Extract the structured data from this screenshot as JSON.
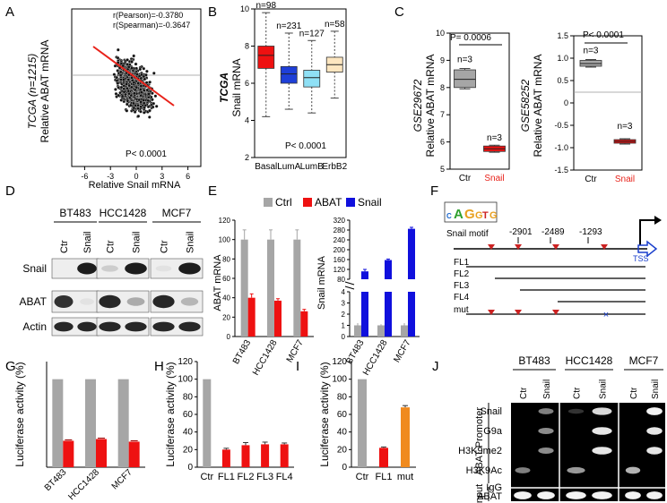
{
  "panels": {
    "A": {
      "letter": "A"
    },
    "B": {
      "letter": "B"
    },
    "C": {
      "letter": "C"
    },
    "D": {
      "letter": "D"
    },
    "E": {
      "letter": "E"
    },
    "F": {
      "letter": "F"
    },
    "G": {
      "letter": "G"
    },
    "H": {
      "letter": "H"
    },
    "I": {
      "letter": "I"
    },
    "J": {
      "letter": "J"
    }
  },
  "colors": {
    "gray": "#a6a6a6",
    "red": "#ee1111",
    "blue": "#1010dd",
    "orange": "#f08a1e",
    "black": "#000000"
  },
  "chart_data": [
    {
      "id": "A",
      "type": "scatter",
      "ylabel_italic": "TCGA (n=1215)",
      "ylabel": "Relative ABAT mRNA",
      "xlabel": "Relative Snail mRNA",
      "xticks": [
        "-6",
        "-3",
        "0",
        "3",
        "6"
      ],
      "xlim": [
        -7.5,
        7.5
      ],
      "ylim": [
        -3,
        3
      ],
      "annotations": [
        "r(Pearson)=-0.3780",
        "r(Spearman)=-0.3647"
      ],
      "pvalue": "P< 0.0001",
      "n_points": 1215,
      "regression_slope": -0.38
    },
    {
      "id": "B",
      "type": "box",
      "ylabel_italic": "TCGA",
      "ylabel": "Snail mRNA",
      "categories": [
        "Basal",
        "LumA",
        "LumB",
        "ErbB2"
      ],
      "counts": [
        "n=98",
        "n=231",
        "n=127",
        "n=58"
      ],
      "colors": [
        "#ee1111",
        "#1e3fd8",
        "#8fe0f5",
        "#fde6c0"
      ],
      "yticks": [
        "2",
        "4",
        "6",
        "8",
        "10"
      ],
      "ylim": [
        2,
        10
      ],
      "boxes": [
        {
          "min": 4.2,
          "q1": 6.8,
          "median": 7.5,
          "q3": 8.0,
          "max": 9.8
        },
        {
          "min": 4.6,
          "q1": 6.0,
          "median": 6.5,
          "q3": 6.9,
          "max": 8.7
        },
        {
          "min": 4.4,
          "q1": 5.8,
          "median": 6.3,
          "q3": 6.7,
          "max": 8.3
        },
        {
          "min": 5.2,
          "q1": 6.6,
          "median": 7.0,
          "q3": 7.4,
          "max": 8.8
        }
      ],
      "pvalue": "P< 0.0001"
    },
    {
      "id": "C1",
      "type": "box",
      "ylabel_italic": "GSE29672",
      "ylabel": "Relative ABAT mRNA",
      "categories": [
        "Ctr",
        "Snail"
      ],
      "counts": [
        "n=3",
        "n=3"
      ],
      "colors": [
        "#a6a6a6",
        "#ee1111"
      ],
      "yticks": [
        "5",
        "6",
        "7",
        "8",
        "9",
        "10"
      ],
      "ylim": [
        5,
        10
      ],
      "boxes": [
        {
          "min": 7.95,
          "q1": 8.0,
          "median": 8.3,
          "q3": 8.65,
          "max": 8.7
        },
        {
          "min": 5.62,
          "q1": 5.65,
          "median": 5.75,
          "q3": 5.85,
          "max": 5.88
        }
      ],
      "pvalue": "P= 0.0006"
    },
    {
      "id": "C2",
      "type": "box",
      "ylabel_italic": "GSE58252",
      "ylabel": "Relative ABAT mRNA",
      "categories": [
        "Ctr",
        "Snail"
      ],
      "counts": [
        "n=3",
        "n=3"
      ],
      "colors": [
        "#a6a6a6",
        "#ee1111"
      ],
      "yticks": [
        "1.5",
        "1.0",
        "0.5",
        "0",
        "-0.5",
        "-1.0",
        "-1.5"
      ],
      "ylim": [
        -1.5,
        1.5
      ],
      "boxes": [
        {
          "min": 0.8,
          "q1": 0.82,
          "median": 0.88,
          "q3": 0.95,
          "max": 0.97
        },
        {
          "min": -0.92,
          "q1": -0.9,
          "median": -0.86,
          "q3": -0.82,
          "max": -0.8
        }
      ],
      "pvalue": "P< 0.0001"
    },
    {
      "id": "E",
      "type": "bar",
      "legend": [
        "Ctrl",
        "ABAT",
        "Snail"
      ],
      "categories": [
        "BT483",
        "HCC1428",
        "MCF7"
      ],
      "left": {
        "ylabel": "ABAT mRNA",
        "yticks": [
          "0",
          "20",
          "40",
          "60",
          "80",
          "100",
          "120"
        ],
        "ylim": [
          0,
          120
        ],
        "series": [
          {
            "name": "Ctrl",
            "values": [
              100,
              100,
              100
            ],
            "errors": [
              10,
              10,
              10
            ]
          },
          {
            "name": "ABAT",
            "values": [
              40,
              37,
              26
            ],
            "errors": [
              4,
              2,
              2
            ]
          }
        ]
      },
      "right": {
        "ylabel": "Snail mRNA",
        "upper_ticks": [
          "80",
          "120",
          "160",
          "200",
          "240",
          "280",
          "320"
        ],
        "lower_ticks": [
          "0",
          "1",
          "2",
          "3",
          "4"
        ],
        "series": [
          {
            "name": "Ctrl",
            "values": [
              1,
              1,
              1
            ],
            "errors": [
              0.2,
              0.1,
              0.2
            ]
          },
          {
            "name": "Snail",
            "values": [
              112,
              158,
              285
            ],
            "errors": [
              8,
              4,
              6
            ]
          }
        ]
      }
    },
    {
      "id": "G",
      "type": "bar",
      "ylabel": "Luciferase activity (%)",
      "categories": [
        "BT483",
        "HCC1428",
        "MCF7"
      ],
      "yticks": [
        "0",
        "20",
        "40",
        "60",
        "80",
        "100",
        "120"
      ],
      "ylim": [
        0,
        120
      ],
      "series": [
        {
          "name": "Ctrl",
          "values": [
            100,
            100,
            100
          ]
        },
        {
          "name": "Snail",
          "values": [
            30,
            32,
            29
          ],
          "errors": [
            1,
            1,
            1
          ]
        }
      ]
    },
    {
      "id": "H",
      "type": "bar",
      "ylabel": "Luciferase activity (%)",
      "categories": [
        "Ctr",
        "FL1",
        "FL2",
        "FL3",
        "FL4"
      ],
      "yticks": [
        "0",
        "20",
        "40",
        "60",
        "80",
        "100",
        "120"
      ],
      "ylim": [
        0,
        120
      ],
      "values": [
        100,
        20,
        25,
        26,
        26
      ],
      "errors": [
        0,
        1.5,
        3,
        2.5,
        1.5
      ],
      "colors": [
        "#a6a6a6",
        "#ee1111",
        "#ee1111",
        "#ee1111",
        "#ee1111"
      ]
    },
    {
      "id": "I",
      "type": "bar",
      "ylabel": "Luciferase activity (%)",
      "categories": [
        "Ctr",
        "FL1",
        "mut"
      ],
      "yticks": [
        "0",
        "20",
        "40",
        "60",
        "80",
        "100",
        "120"
      ],
      "ylim": [
        0,
        120
      ],
      "values": [
        100,
        22,
        68
      ],
      "errors": [
        0,
        1,
        2
      ],
      "colors": [
        "#a6a6a6",
        "#ee1111",
        "#f08a1e"
      ]
    }
  ],
  "panel_D": {
    "cell_lines": [
      "BT483",
      "HCC1428",
      "MCF7"
    ],
    "lanes": [
      "Ctr",
      "Snail"
    ],
    "rows": [
      "Snail",
      "ABAT",
      "Actin"
    ],
    "bands": [
      [
        [
          0,
          0.95
        ],
        [
          0.15,
          0.95
        ],
        [
          0.05,
          0.95
        ]
      ],
      [
        [
          0.85,
          0.05
        ],
        [
          0.9,
          0.3
        ],
        [
          0.9,
          0.25
        ]
      ],
      [
        [
          0.9,
          0.9
        ],
        [
          0.9,
          0.9
        ],
        [
          0.9,
          0.9
        ]
      ]
    ]
  },
  "panel_F": {
    "motif": [
      "C",
      "A",
      "G",
      "G",
      "T",
      "G"
    ],
    "motif_label": "Snail motif",
    "positions": [
      "-2901",
      "-2489",
      "-1293"
    ],
    "tss": "TSS",
    "constructs": [
      "FL1",
      "FL2",
      "FL3",
      "FL4",
      "mut"
    ]
  },
  "panel_J": {
    "cell_lines": [
      "BT483",
      "HCC1428",
      "MCF7"
    ],
    "lanes": [
      "Ctr",
      "Snail"
    ],
    "rows": [
      "Snail",
      "G9a",
      "H3K9me2",
      "H3K9Ac",
      "IgG",
      "ABAT"
    ],
    "group_label": "ABAT Promoter",
    "input_label": "Input",
    "bands": [
      [
        [
          0,
          0.5
        ],
        [
          0.2,
          0.85
        ],
        [
          0,
          0.95
        ]
      ],
      [
        [
          0,
          0.55
        ],
        [
          0,
          0.9
        ],
        [
          0,
          0.9
        ]
      ],
      [
        [
          0,
          0.55
        ],
        [
          0,
          0.9
        ],
        [
          0,
          0.9
        ]
      ],
      [
        [
          0.5,
          0
        ],
        [
          0.6,
          0
        ],
        [
          0.7,
          0
        ]
      ],
      [
        [
          0,
          0
        ],
        [
          0,
          0
        ],
        [
          0,
          0
        ]
      ],
      [
        [
          0.95,
          0.95
        ],
        [
          0.95,
          0.95
        ],
        [
          0.95,
          0.95
        ]
      ]
    ]
  }
}
